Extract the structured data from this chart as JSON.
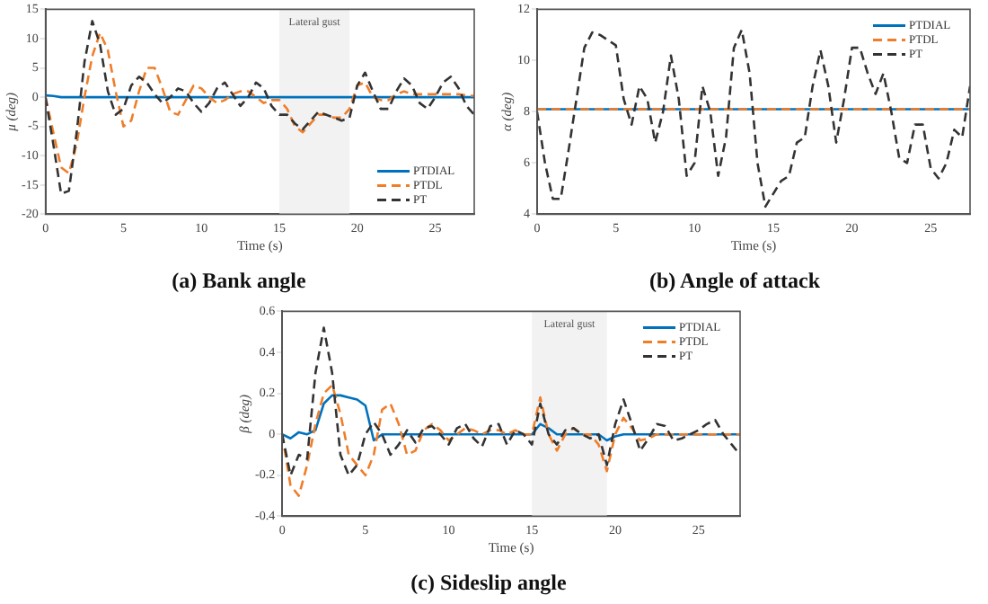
{
  "chart_data": [
    {
      "type": "line",
      "title": "(a) Bank angle",
      "xlabel": "Time (s)",
      "ylabel": "μ (deg)",
      "xlim": [
        0,
        27.5
      ],
      "xticks": [
        0,
        5,
        10,
        15,
        20,
        25
      ],
      "ylim": [
        -20,
        15
      ],
      "yticks": [
        -20,
        -15,
        -10,
        -5,
        0,
        5,
        10,
        15
      ],
      "grid": false,
      "legend": "bottom right",
      "marker": "none",
      "bands": [
        {
          "axis": "x",
          "from": 15,
          "to": 19.5,
          "label": "Lateral gust",
          "color": "#f2f2f2"
        }
      ],
      "x": [
        0,
        0.5,
        1,
        1.5,
        2,
        2.5,
        3,
        3.5,
        4,
        4.5,
        5,
        5.5,
        6,
        6.5,
        7,
        7.5,
        8,
        8.5,
        9,
        9.5,
        10,
        10.5,
        11,
        11.5,
        12,
        12.5,
        13,
        13.5,
        14,
        14.5,
        15,
        15.5,
        16,
        16.5,
        17,
        17.5,
        18,
        18.5,
        19,
        19.5,
        20,
        20.5,
        21,
        21.5,
        22,
        22.5,
        23,
        23.5,
        24,
        24.5,
        25,
        25.5,
        26,
        26.5,
        27,
        27.5
      ],
      "series": [
        {
          "name": "PTDIAL",
          "color": "#0072bd",
          "line_style": "solid",
          "values": [
            0.3,
            0.2,
            0,
            0,
            0,
            0,
            0,
            0,
            0,
            0,
            0,
            0,
            0,
            0,
            0,
            0,
            0,
            0,
            0,
            0,
            0,
            0,
            0,
            0,
            0,
            0,
            0,
            0,
            0,
            0,
            0,
            0,
            0,
            0,
            0,
            0,
            0,
            0,
            0,
            0,
            0,
            0,
            0,
            0,
            0,
            0,
            0,
            0,
            0,
            0,
            0,
            0,
            0,
            0,
            0,
            0
          ]
        },
        {
          "name": "PTDL",
          "color": "#f07d28",
          "line_style": "dashed",
          "values": [
            0,
            -6,
            -12,
            -13,
            -8,
            0,
            7,
            11,
            8,
            1,
            -5,
            -4,
            1,
            5,
            5,
            1.5,
            -2.5,
            -3,
            -0.5,
            2,
            1.5,
            0,
            -1,
            -0.5,
            0.5,
            1,
            1,
            0,
            -1,
            -0.5,
            -0.5,
            -2,
            -5,
            -6,
            -4.5,
            -3,
            -3,
            -3.5,
            -3.5,
            -2,
            2,
            2.5,
            0,
            -0.5,
            -0.5,
            0.5,
            1,
            0.5,
            0.5,
            0.5,
            0.5,
            0.5,
            0.5,
            0.5,
            0.3,
            0.2
          ]
        },
        {
          "name": "PT",
          "color": "#333333",
          "line_style": "dashed",
          "values": [
            0,
            -8,
            -16.5,
            -16,
            -6,
            6,
            13,
            9,
            1,
            -3,
            -2,
            2,
            3.5,
            2.5,
            0.5,
            -1,
            0,
            1.5,
            1,
            -1,
            -2.5,
            -1,
            1.5,
            2.5,
            0.5,
            -1.5,
            0,
            2.5,
            1.5,
            -1.5,
            -3,
            -3,
            -4.5,
            -5.5,
            -4,
            -2.5,
            -3,
            -3.5,
            -4,
            -3.5,
            2,
            4.2,
            1,
            -2,
            -2,
            1,
            3.2,
            2,
            -1,
            -2,
            0,
            2.5,
            3.5,
            1.5,
            -1.5,
            -3
          ]
        }
      ]
    },
    {
      "type": "line",
      "title": "(b) Angle of attack",
      "xlabel": "Time (s)",
      "ylabel": "α (deg)",
      "xlim": [
        0,
        27.5
      ],
      "xticks": [
        0,
        5,
        10,
        15,
        20,
        25
      ],
      "ylim": [
        4,
        12
      ],
      "yticks": [
        4,
        6,
        8,
        10,
        12
      ],
      "grid": false,
      "legend": "top right",
      "marker": "none",
      "x": [
        0,
        0.5,
        1,
        1.5,
        2,
        2.5,
        3,
        3.5,
        4,
        4.5,
        5,
        5.5,
        6,
        6.5,
        7,
        7.5,
        8,
        8.5,
        9,
        9.5,
        10,
        10.5,
        11,
        11.5,
        12,
        12.5,
        13,
        13.5,
        14,
        14.5,
        15,
        15.5,
        16,
        16.5,
        17,
        17.5,
        18,
        18.5,
        19,
        19.5,
        20,
        20.5,
        21,
        21.5,
        22,
        22.5,
        23,
        23.5,
        24,
        24.5,
        25,
        25.5,
        26,
        26.5,
        27,
        27.5
      ],
      "series": [
        {
          "name": "PTDIAL",
          "color": "#0072bd",
          "line_style": "solid",
          "values": [
            8.1,
            8.1,
            8.1,
            8.1,
            8.1,
            8.1,
            8.1,
            8.1,
            8.1,
            8.1,
            8.1,
            8.1,
            8.1,
            8.1,
            8.1,
            8.1,
            8.1,
            8.1,
            8.1,
            8.1,
            8.1,
            8.1,
            8.1,
            8.1,
            8.1,
            8.1,
            8.1,
            8.1,
            8.1,
            8.1,
            8.1,
            8.1,
            8.1,
            8.1,
            8.1,
            8.1,
            8.1,
            8.1,
            8.1,
            8.1,
            8.1,
            8.1,
            8.1,
            8.1,
            8.1,
            8.1,
            8.1,
            8.1,
            8.1,
            8.1,
            8.1,
            8.1,
            8.1,
            8.1,
            8.1,
            8.1
          ]
        },
        {
          "name": "PTDL",
          "color": "#f07d28",
          "line_style": "dashed",
          "values": [
            8.1,
            8.1,
            8.1,
            8.1,
            8.1,
            8.1,
            8.1,
            8.1,
            8.1,
            8.1,
            8.1,
            8.1,
            8.1,
            8.1,
            8.1,
            8.1,
            8.1,
            8.1,
            8.1,
            8.1,
            8.1,
            8.1,
            8.1,
            8.1,
            8.1,
            8.1,
            8.1,
            8.1,
            8.1,
            8.1,
            8.1,
            8.1,
            8.1,
            8.1,
            8.1,
            8.1,
            8.1,
            8.1,
            8.1,
            8.1,
            8.1,
            8.1,
            8.1,
            8.1,
            8.1,
            8.1,
            8.1,
            8.1,
            8.1,
            8.1,
            8.1,
            8.1,
            8.1,
            8.1,
            8.1,
            8.1
          ]
        },
        {
          "name": "PT",
          "color": "#333333",
          "line_style": "dashed",
          "values": [
            8,
            6,
            4.6,
            4.6,
            6.5,
            8.5,
            10.5,
            11.1,
            11,
            10.8,
            10.6,
            8.5,
            7.5,
            9,
            8.5,
            6.8,
            8,
            10.2,
            8.5,
            5.5,
            6,
            9,
            8,
            5.5,
            7,
            10.5,
            11.2,
            9.5,
            6,
            4.3,
            4.8,
            5.3,
            5.5,
            6.8,
            7,
            9,
            10.4,
            9,
            6.8,
            8.5,
            10.5,
            10.5,
            9.5,
            8.7,
            9.5,
            8,
            6.2,
            6,
            7.5,
            7.5,
            5.8,
            5.4,
            6,
            7.3,
            7,
            9
          ]
        }
      ]
    },
    {
      "type": "line",
      "title": "(c) Sideslip angle",
      "xlabel": "Time (s)",
      "ylabel": "β (deg)",
      "xlim": [
        0,
        27.5
      ],
      "xticks": [
        0,
        5,
        10,
        15,
        20,
        25
      ],
      "ylim": [
        -0.4,
        0.6
      ],
      "yticks": [
        -0.4,
        -0.2,
        0,
        0.2,
        0.4,
        0.6
      ],
      "grid": false,
      "legend": "top right",
      "marker": "none",
      "bands": [
        {
          "axis": "x",
          "from": 15,
          "to": 19.5,
          "label": "Lateral gust",
          "color": "#f2f2f2"
        }
      ],
      "x": [
        0,
        0.5,
        1,
        1.5,
        2,
        2.5,
        3,
        3.5,
        4,
        4.5,
        5,
        5.5,
        6,
        6.5,
        7,
        7.5,
        8,
        8.5,
        9,
        9.5,
        10,
        10.5,
        11,
        11.5,
        12,
        12.5,
        13,
        13.5,
        14,
        14.5,
        15,
        15.5,
        16,
        16.5,
        17,
        17.5,
        18,
        18.5,
        19,
        19.5,
        20,
        20.5,
        21,
        21.5,
        22,
        22.5,
        23,
        23.5,
        24,
        24.5,
        25,
        25.5,
        26,
        26.5,
        27,
        27.5
      ],
      "series": [
        {
          "name": "PTDIAL",
          "color": "#0072bd",
          "line_style": "solid",
          "values": [
            0,
            -0.02,
            0.01,
            0,
            0.02,
            0.15,
            0.19,
            0.19,
            0.18,
            0.17,
            0.14,
            -0.03,
            0,
            0,
            0,
            0,
            0,
            0,
            0,
            0,
            0,
            0,
            0,
            0,
            0,
            0,
            0,
            0,
            0,
            0,
            0,
            0.05,
            0.03,
            0,
            0,
            0,
            0,
            0,
            0,
            -0.03,
            -0.01,
            0,
            0,
            0,
            0,
            0,
            0,
            0,
            0,
            0,
            0,
            0,
            0,
            0,
            0,
            0
          ]
        },
        {
          "name": "PTDL",
          "color": "#f07d28",
          "line_style": "dashed",
          "values": [
            0,
            -0.25,
            -0.3,
            -0.15,
            0.05,
            0.2,
            0.24,
            0.1,
            -0.1,
            -0.15,
            -0.2,
            -0.1,
            0.12,
            0.15,
            0.05,
            -0.1,
            -0.08,
            0.02,
            0.05,
            0.02,
            -0.03,
            0,
            0.03,
            0.02,
            0,
            0.02,
            0.02,
            0,
            0.02,
            0,
            0,
            0.18,
            0,
            -0.08,
            0,
            0.03,
            0,
            0,
            -0.05,
            -0.18,
            0,
            0.08,
            0.03,
            -0.03,
            -0.02,
            0,
            0,
            0,
            0,
            0,
            0,
            0,
            0,
            0,
            0,
            0
          ]
        },
        {
          "name": "PT",
          "color": "#333333",
          "line_style": "dashed",
          "values": [
            0,
            -0.2,
            -0.1,
            -0.12,
            0.3,
            0.52,
            0.3,
            -0.1,
            -0.2,
            -0.15,
            0,
            0.06,
            0,
            -0.1,
            -0.05,
            0.02,
            -0.04,
            0.03,
            0.04,
            0,
            -0.05,
            0.03,
            0.05,
            -0.02,
            -0.06,
            0.04,
            0.05,
            -0.05,
            0.02,
            0,
            -0.05,
            0.15,
            0,
            -0.05,
            0.02,
            0.03,
            0,
            -0.02,
            0,
            -0.15,
            0.05,
            0.17,
            0.05,
            -0.08,
            -0.02,
            0.05,
            0.04,
            -0.03,
            -0.02,
            0,
            0.02,
            0.05,
            0.07,
            0,
            -0.05,
            -0.1
          ]
        }
      ]
    }
  ]
}
